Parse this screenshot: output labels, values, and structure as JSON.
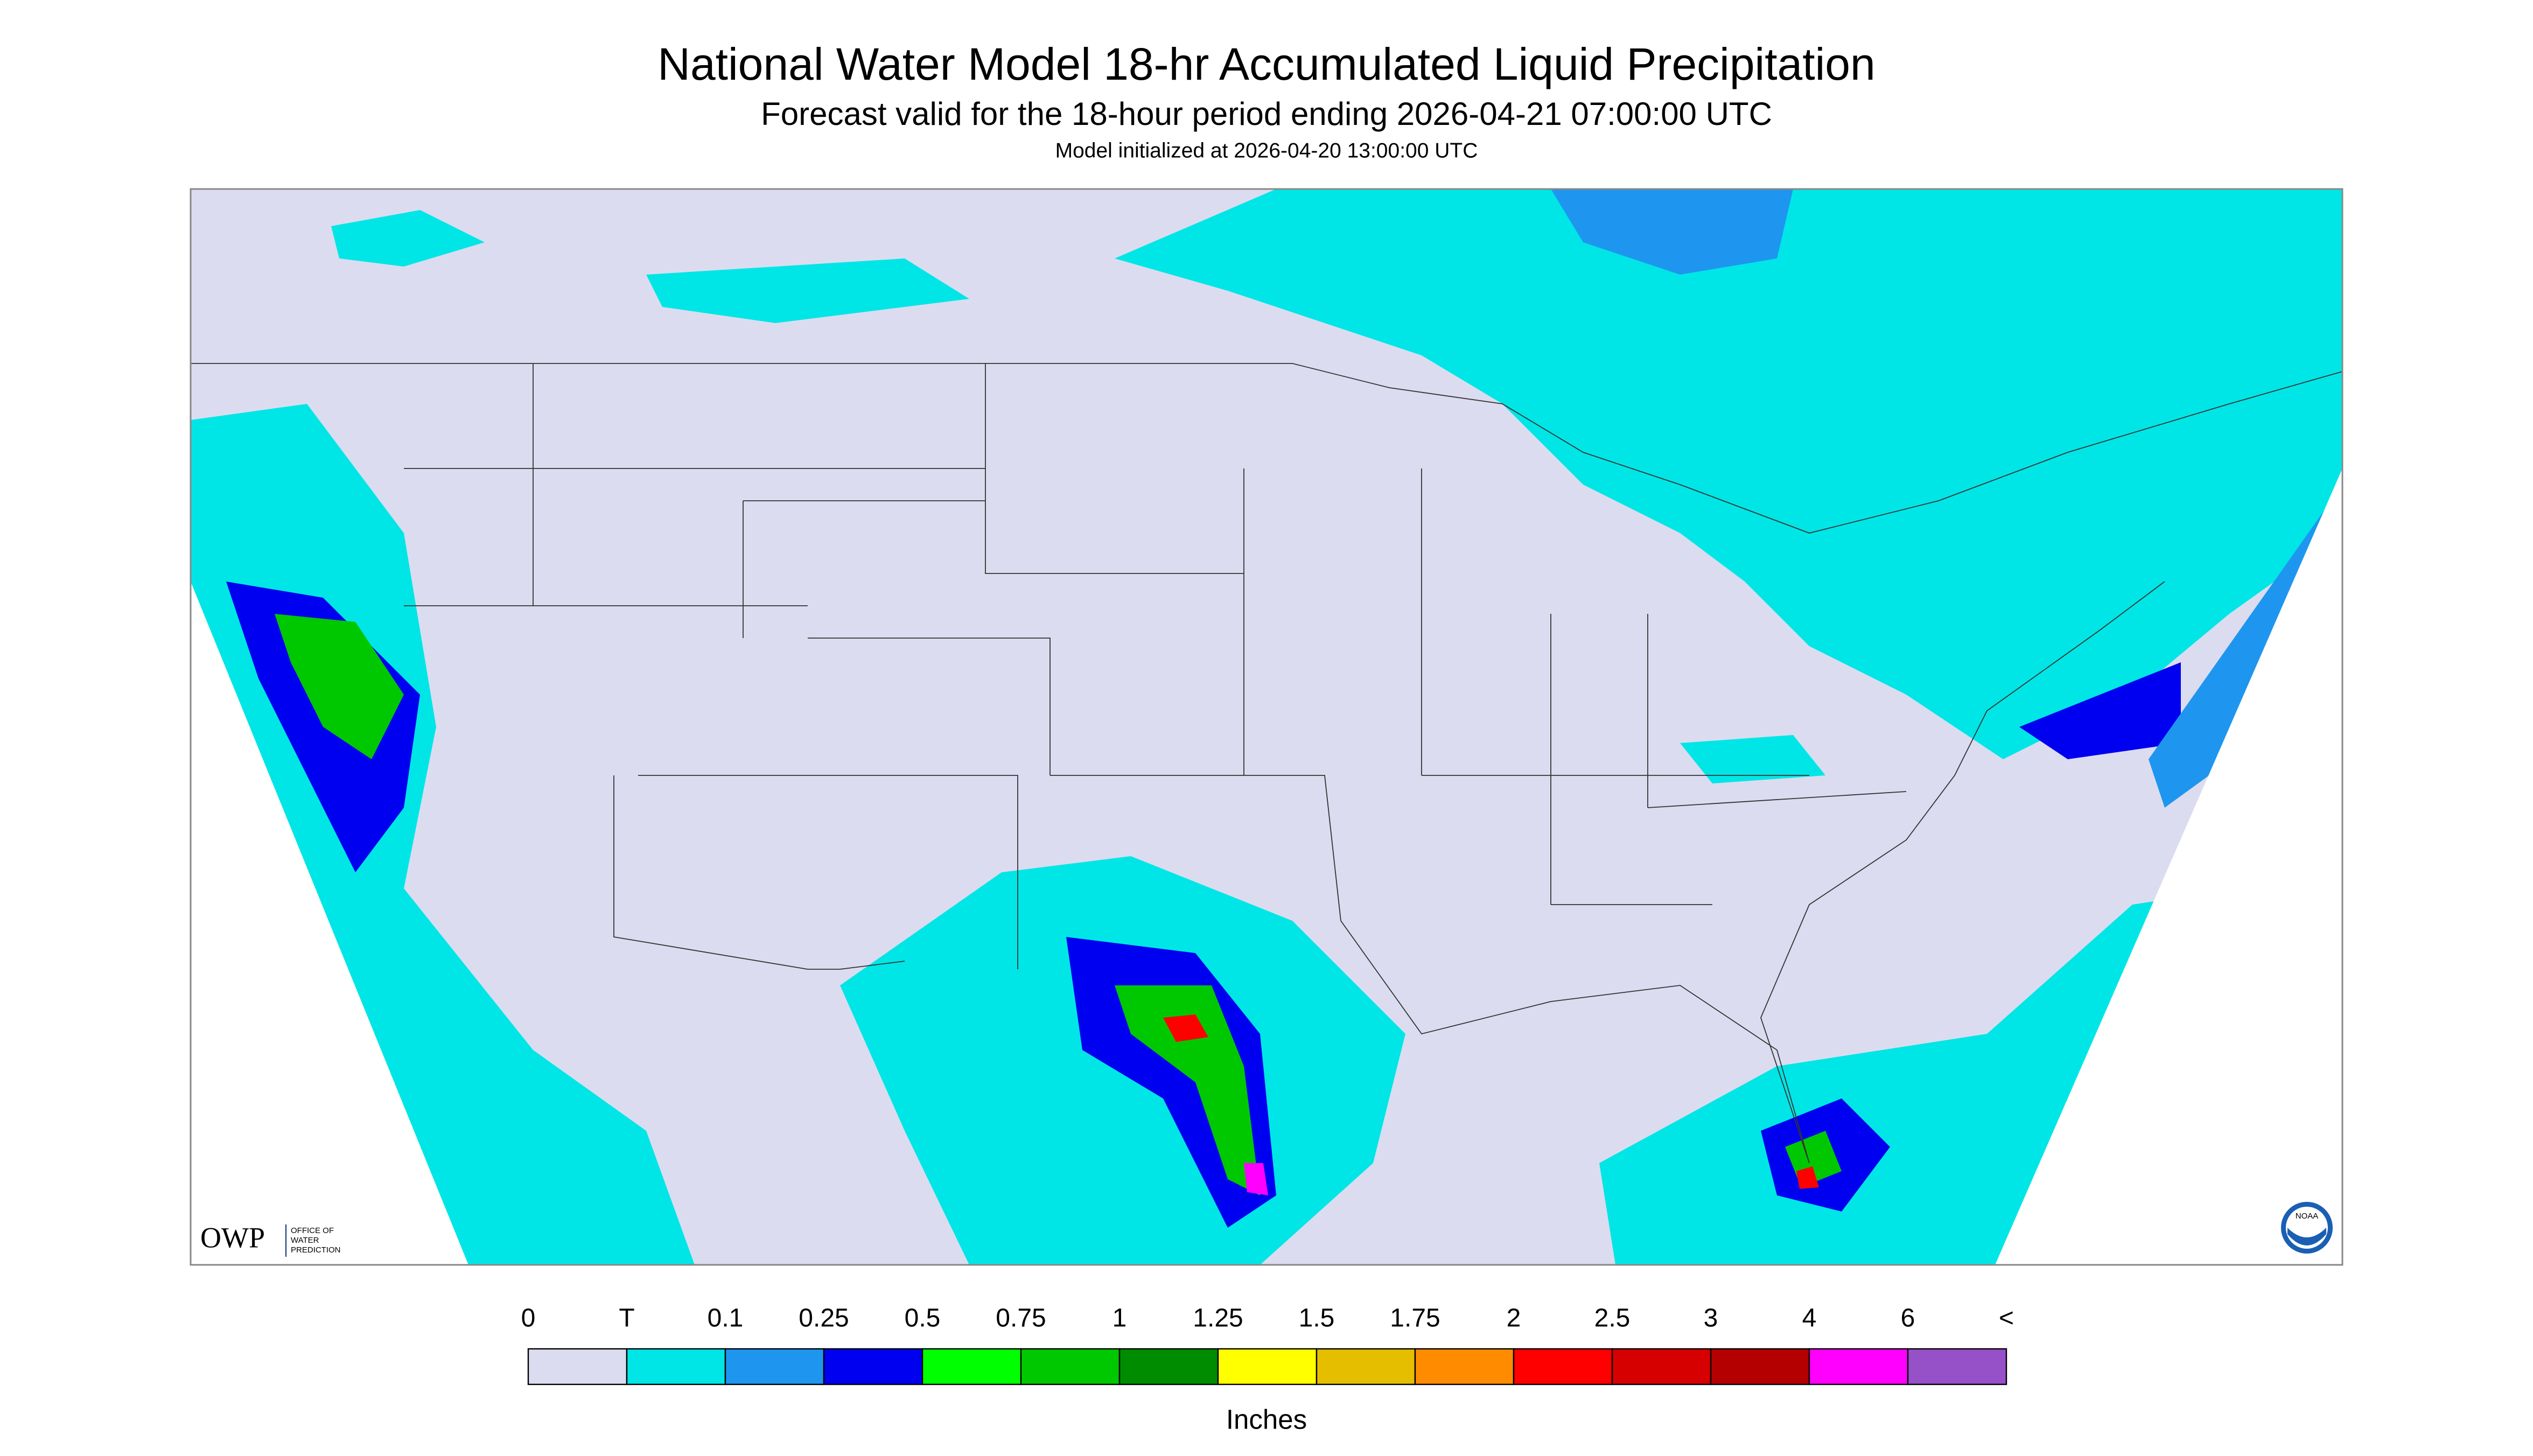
{
  "header": {
    "title": "National Water Model 18-hr Accumulated Liquid Precipitation",
    "subtitle": "Forecast valid for the 18-hour period ending 2026-04-21 07:00:00 UTC",
    "note": "Model initialized at 2026-04-20 13:00:00 UTC"
  },
  "legend": {
    "labels": [
      "0",
      "T",
      "0.1",
      "0.25",
      "0.5",
      "0.75",
      "1",
      "1.25",
      "1.5",
      "1.75",
      "2",
      "2.5",
      "3",
      "4",
      "6",
      "<"
    ],
    "colors": [
      "#dcdcf0",
      "#00e6e6",
      "#1e96f0",
      "#0000f0",
      "#00ff00",
      "#00c800",
      "#008c00",
      "#ffff00",
      "#e6be00",
      "#ff8c00",
      "#ff0000",
      "#d70000",
      "#b40000",
      "#ff00ff",
      "#9650c8"
    ],
    "unit": "Inches"
  },
  "logos": {
    "owp": "OWP",
    "owp_full": [
      "OFFICE OF",
      "WATER",
      "PREDICTION"
    ],
    "noaa": "NOAA"
  }
}
